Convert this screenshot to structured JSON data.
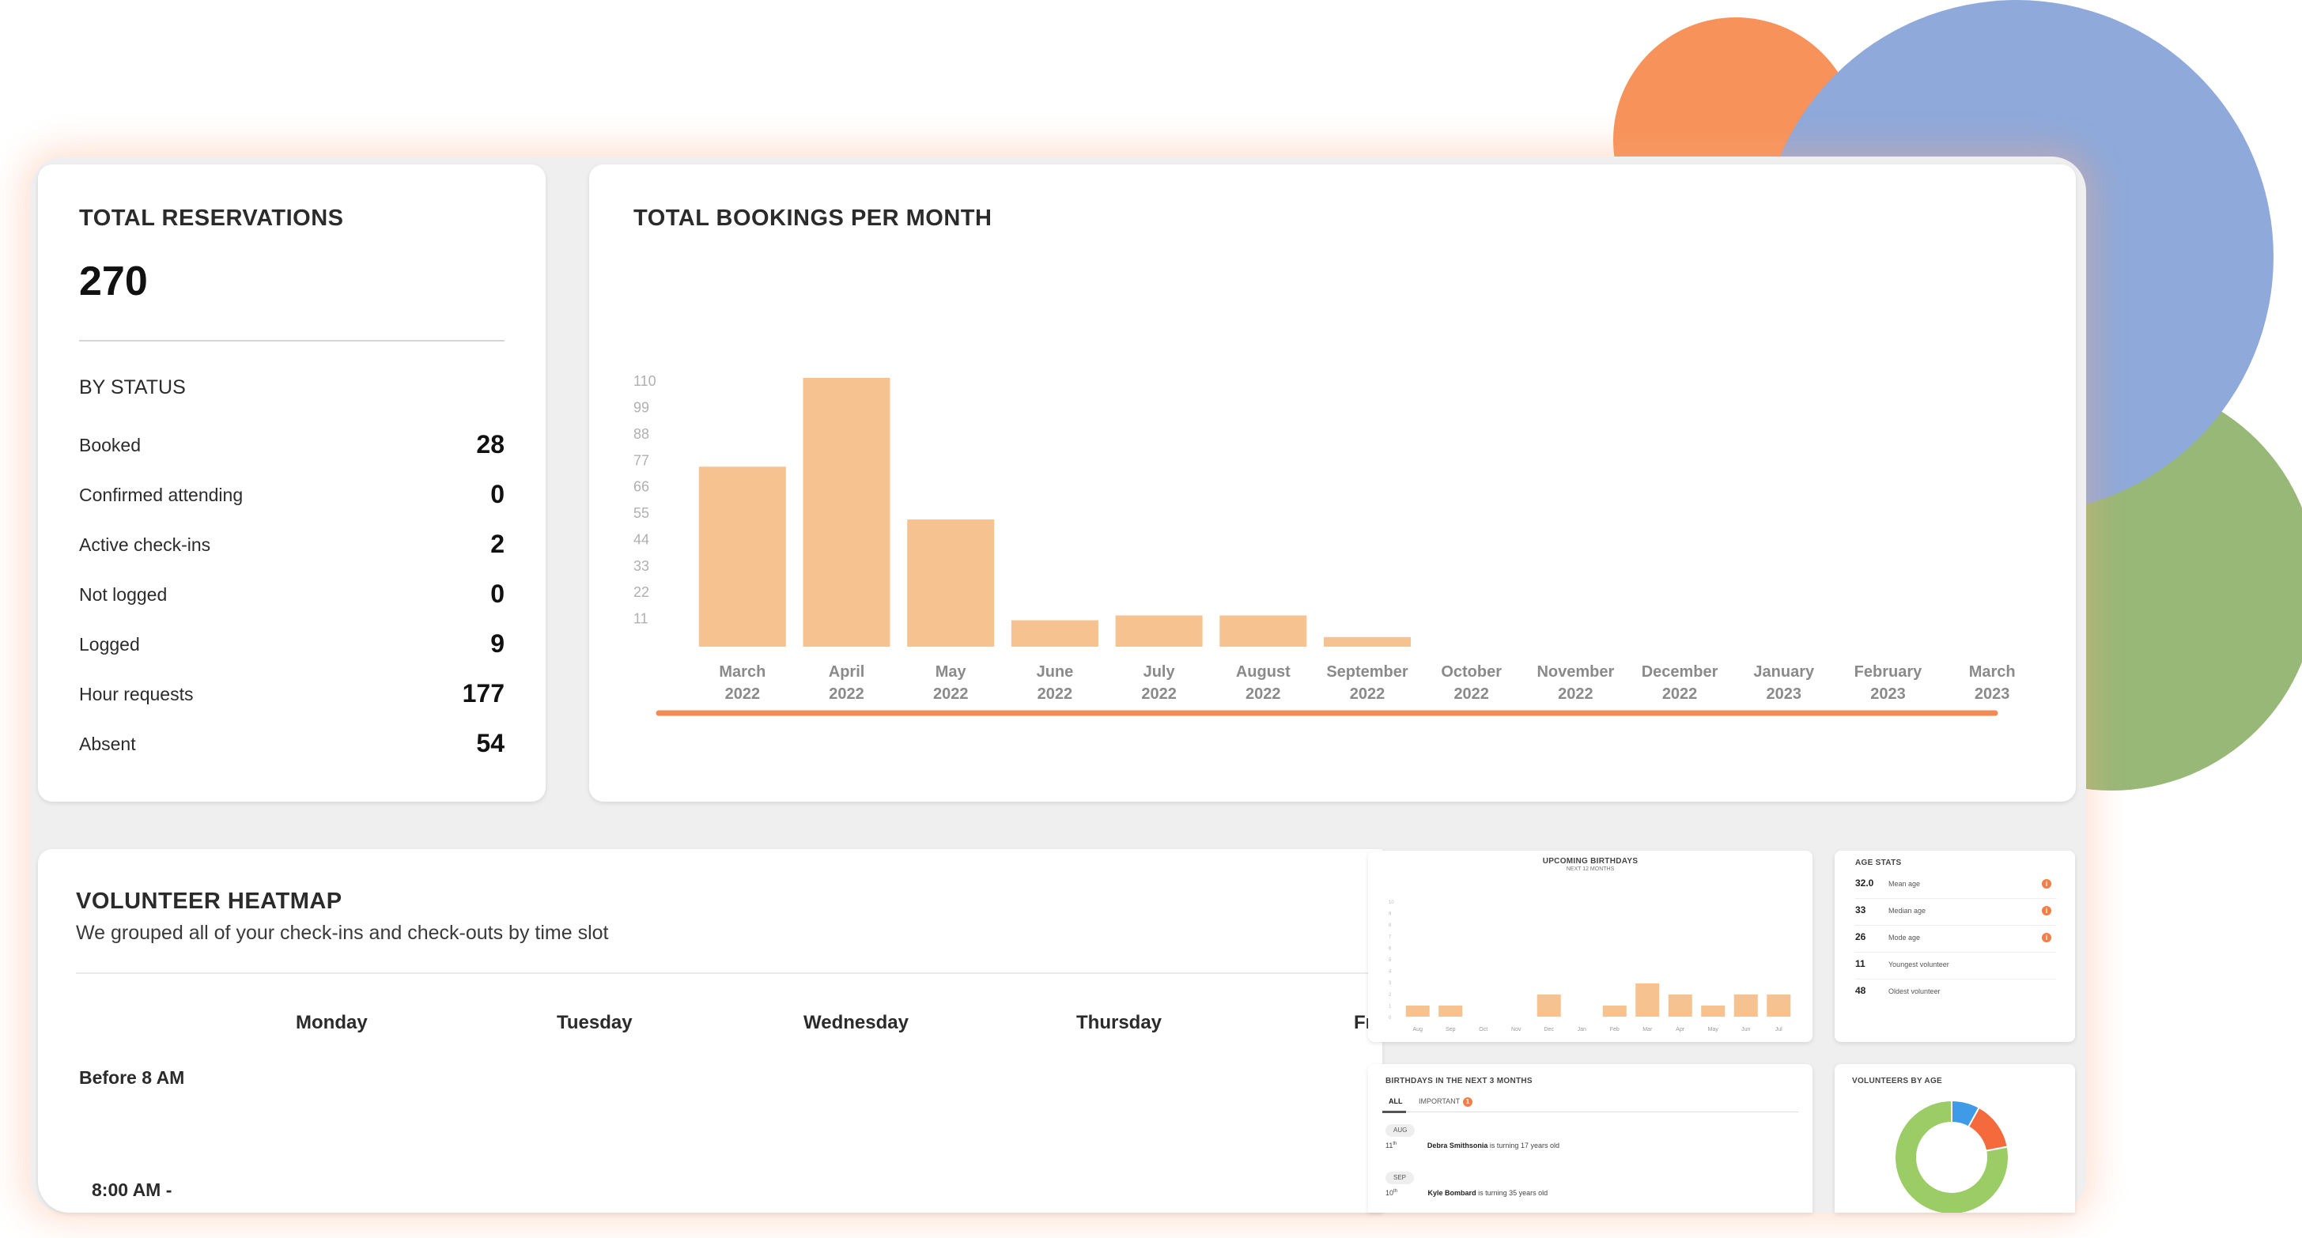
{
  "reservations": {
    "title": "TOTAL RESERVATIONS",
    "total": "270",
    "by_status_label": "BY STATUS",
    "statuses": [
      {
        "label": "Booked",
        "value": "28"
      },
      {
        "label": "Confirmed attending",
        "value": "0"
      },
      {
        "label": "Active check-ins",
        "value": "2"
      },
      {
        "label": "Not logged",
        "value": "0"
      },
      {
        "label": "Logged",
        "value": "9"
      },
      {
        "label": "Hour requests",
        "value": "177"
      },
      {
        "label": "Absent",
        "value": "54"
      }
    ]
  },
  "bookings": {
    "title": "TOTAL BOOKINGS PER MONTH",
    "bar_color": "#f6c28f",
    "range_color": "#f28a55"
  },
  "chart_data": [
    {
      "type": "bar",
      "title": "TOTAL BOOKINGS PER MONTH",
      "categories": [
        [
          "March",
          "2022"
        ],
        [
          "April",
          "2022"
        ],
        [
          "May",
          "2022"
        ],
        [
          "June",
          "2022"
        ],
        [
          "July",
          "2022"
        ],
        [
          "August",
          "2022"
        ],
        [
          "September",
          "2022"
        ],
        [
          "October",
          "2022"
        ],
        [
          "November",
          "2022"
        ],
        [
          "December",
          "2022"
        ],
        [
          "January",
          "2023"
        ],
        [
          "February",
          "2023"
        ],
        [
          "March",
          "2023"
        ]
      ],
      "values": [
        75,
        112,
        53,
        11,
        13,
        13,
        4,
        0,
        0,
        0,
        0,
        0,
        0
      ],
      "yticks": [
        11,
        22,
        33,
        44,
        55,
        66,
        77,
        88,
        99,
        110
      ],
      "ylim": [
        0,
        110
      ]
    },
    {
      "type": "bar",
      "title": "UPCOMING BIRTHDAYS",
      "subtitle": "NEXT 12 MONTHS",
      "categories": [
        "Aug",
        "Sep",
        "Oct",
        "Nov",
        "Dec",
        "Jan",
        "Feb",
        "Mar",
        "Apr",
        "May",
        "Jun",
        "Jul"
      ],
      "values": [
        1,
        1,
        0,
        0,
        2,
        0,
        1,
        3,
        2,
        1,
        2,
        2
      ],
      "ylim": [
        0,
        10
      ]
    },
    {
      "type": "pie",
      "title": "VOLUNTEERS BY AGE",
      "values": [
        8,
        14,
        78
      ],
      "colors": [
        "#3f9be8",
        "#f56a3c",
        "#9ccc65"
      ]
    }
  ],
  "heatmap": {
    "title": "VOLUNTEER HEATMAP",
    "subtitle": "We grouped all of your check-ins and check-outs by time slot",
    "days": [
      "Monday",
      "Tuesday",
      "Wednesday",
      "Thursday",
      "Fr"
    ],
    "slots": [
      "Before 8 AM",
      "8:00 AM -"
    ]
  },
  "age_stats": {
    "title": "AGE STATS",
    "rows": [
      {
        "value": "32.0",
        "label": "Mean age",
        "info": true
      },
      {
        "value": "33",
        "label": "Median age",
        "info": true
      },
      {
        "value": "26",
        "label": "Mode age",
        "info": true
      },
      {
        "value": "11",
        "label": "Youngest volunteer",
        "info": false
      },
      {
        "value": "48",
        "label": "Oldest volunteer",
        "info": false
      }
    ]
  },
  "birthdays_next": {
    "title": "BIRTHDAYS IN THE NEXT 3 MONTHS",
    "tabs": [
      "ALL",
      "IMPORTANT"
    ],
    "important_count": "1",
    "entries": [
      {
        "month": "AUG",
        "day": "11",
        "suffix": "th",
        "name": "Debra Smithsonia",
        "text": "is turning 17 years old"
      },
      {
        "month": "SEP",
        "day": "10",
        "suffix": "th",
        "name": "Kyle Bombard",
        "text": "is turning 35 years old"
      }
    ]
  },
  "volunteers_by_age": {
    "title": "VOLUNTEERS BY AGE"
  }
}
